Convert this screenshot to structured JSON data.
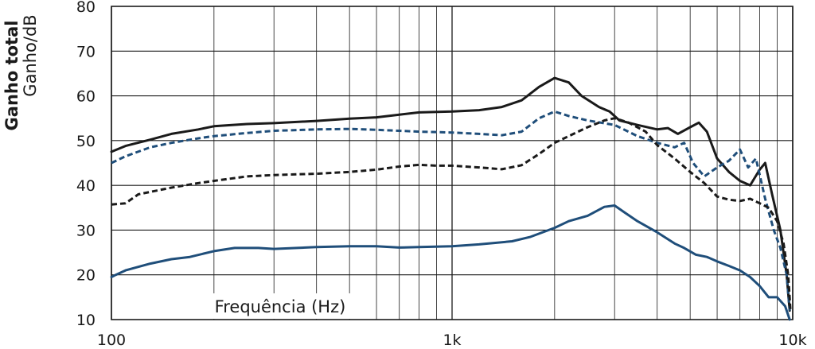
{
  "chart_data": {
    "type": "line",
    "title": "",
    "ylabel_bold": "Ganho total",
    "ylabel": "Ganho/dB",
    "xlabel": "Frequência (Hz)",
    "x_scale": "log",
    "xlim": [
      100,
      10000
    ],
    "ylim": [
      10,
      80
    ],
    "x_ticks": [
      100,
      1000,
      10000
    ],
    "x_tick_labels": [
      "100",
      "1k",
      "10k"
    ],
    "y_ticks": [
      10,
      20,
      30,
      40,
      50,
      60,
      70,
      80
    ],
    "y_tick_labels": [
      "10",
      "20",
      "30",
      "40",
      "50",
      "60",
      "70",
      "80"
    ],
    "grid": true,
    "series": [
      {
        "color": "#1a1a1a",
        "style": "solid",
        "points": [
          [
            100,
            47.5
          ],
          [
            110,
            48.8
          ],
          [
            130,
            50.2
          ],
          [
            150,
            51.5
          ],
          [
            180,
            52.5
          ],
          [
            200,
            53.2
          ],
          [
            250,
            53.7
          ],
          [
            300,
            53.9
          ],
          [
            400,
            54.4
          ],
          [
            500,
            54.9
          ],
          [
            600,
            55.2
          ],
          [
            700,
            55.8
          ],
          [
            800,
            56.3
          ],
          [
            1000,
            56.5
          ],
          [
            1200,
            56.8
          ],
          [
            1400,
            57.5
          ],
          [
            1600,
            59
          ],
          [
            1800,
            62
          ],
          [
            2000,
            64
          ],
          [
            2200,
            63
          ],
          [
            2400,
            60
          ],
          [
            2700,
            57.5
          ],
          [
            2900,
            56.5
          ],
          [
            3100,
            54.5
          ],
          [
            3500,
            53.5
          ],
          [
            4000,
            52.5
          ],
          [
            4300,
            52.8
          ],
          [
            4600,
            51.5
          ],
          [
            5000,
            53
          ],
          [
            5300,
            54
          ],
          [
            5600,
            52
          ],
          [
            6000,
            46
          ],
          [
            6500,
            43
          ],
          [
            7000,
            41
          ],
          [
            7500,
            40
          ],
          [
            8000,
            43.5
          ],
          [
            8300,
            45
          ],
          [
            8700,
            38
          ],
          [
            9200,
            30
          ],
          [
            9600,
            20
          ],
          [
            9800,
            12
          ]
        ]
      },
      {
        "color": "#1f4e7a",
        "style": "dashed",
        "points": [
          [
            100,
            45
          ],
          [
            110,
            46.5
          ],
          [
            130,
            48.5
          ],
          [
            150,
            49.5
          ],
          [
            180,
            50.5
          ],
          [
            200,
            51
          ],
          [
            250,
            51.7
          ],
          [
            300,
            52.2
          ],
          [
            400,
            52.5
          ],
          [
            500,
            52.6
          ],
          [
            600,
            52.4
          ],
          [
            700,
            52.2
          ],
          [
            800,
            52
          ],
          [
            1000,
            51.8
          ],
          [
            1200,
            51.5
          ],
          [
            1400,
            51.2
          ],
          [
            1600,
            52
          ],
          [
            1800,
            55
          ],
          [
            2000,
            56.5
          ],
          [
            2200,
            55.5
          ],
          [
            2500,
            54.5
          ],
          [
            3000,
            53.5
          ],
          [
            3500,
            51
          ],
          [
            4000,
            49.5
          ],
          [
            4500,
            48.5
          ],
          [
            4800,
            49.5
          ],
          [
            5100,
            45
          ],
          [
            5500,
            42
          ],
          [
            6000,
            44
          ],
          [
            6500,
            45.5
          ],
          [
            7000,
            48
          ],
          [
            7400,
            44
          ],
          [
            7800,
            46
          ],
          [
            8300,
            37
          ],
          [
            8800,
            30
          ],
          [
            9200,
            26
          ],
          [
            9600,
            20
          ],
          [
            9800,
            12
          ]
        ]
      },
      {
        "color": "#1a1a1a",
        "style": "dashed",
        "points": [
          [
            100,
            35.7
          ],
          [
            110,
            36
          ],
          [
            120,
            38
          ],
          [
            150,
            39.5
          ],
          [
            180,
            40.5
          ],
          [
            200,
            41
          ],
          [
            250,
            42
          ],
          [
            300,
            42.3
          ],
          [
            400,
            42.6
          ],
          [
            500,
            43
          ],
          [
            600,
            43.5
          ],
          [
            700,
            44.2
          ],
          [
            800,
            44.6
          ],
          [
            900,
            44.4
          ],
          [
            1000,
            44.4
          ],
          [
            1200,
            44
          ],
          [
            1400,
            43.6
          ],
          [
            1600,
            44.5
          ],
          [
            1800,
            47
          ],
          [
            2000,
            49.5
          ],
          [
            2200,
            51
          ],
          [
            2500,
            53
          ],
          [
            2800,
            54.5
          ],
          [
            3000,
            55
          ],
          [
            3300,
            54
          ],
          [
            3700,
            52
          ],
          [
            4000,
            49
          ],
          [
            4500,
            46
          ],
          [
            5000,
            43
          ],
          [
            5500,
            40.5
          ],
          [
            6000,
            37.5
          ],
          [
            6500,
            36.8
          ],
          [
            7000,
            36.5
          ],
          [
            7500,
            37
          ],
          [
            8000,
            36
          ],
          [
            8500,
            35
          ],
          [
            9000,
            32
          ],
          [
            9400,
            27
          ],
          [
            9700,
            20
          ],
          [
            9850,
            12
          ]
        ]
      },
      {
        "color": "#1f4e7a",
        "style": "solid",
        "points": [
          [
            100,
            19.5
          ],
          [
            103,
            20
          ],
          [
            110,
            21
          ],
          [
            130,
            22.5
          ],
          [
            150,
            23.5
          ],
          [
            170,
            24
          ],
          [
            200,
            25.3
          ],
          [
            230,
            26
          ],
          [
            270,
            26
          ],
          [
            300,
            25.8
          ],
          [
            350,
            26
          ],
          [
            400,
            26.2
          ],
          [
            500,
            26.4
          ],
          [
            600,
            26.4
          ],
          [
            700,
            26.1
          ],
          [
            800,
            26.2
          ],
          [
            1000,
            26.4
          ],
          [
            1200,
            26.8
          ],
          [
            1500,
            27.5
          ],
          [
            1700,
            28.5
          ],
          [
            2000,
            30.5
          ],
          [
            2200,
            32
          ],
          [
            2500,
            33.2
          ],
          [
            2800,
            35.2
          ],
          [
            3000,
            35.5
          ],
          [
            3200,
            34
          ],
          [
            3500,
            32
          ],
          [
            4000,
            29.5
          ],
          [
            4500,
            27
          ],
          [
            4800,
            26
          ],
          [
            5200,
            24.5
          ],
          [
            5600,
            24
          ],
          [
            6000,
            23
          ],
          [
            6500,
            22
          ],
          [
            7000,
            21
          ],
          [
            7500,
            19.5
          ],
          [
            8000,
            17.5
          ],
          [
            8500,
            15
          ],
          [
            9000,
            15
          ],
          [
            9500,
            13
          ],
          [
            9800,
            10
          ]
        ]
      }
    ]
  }
}
